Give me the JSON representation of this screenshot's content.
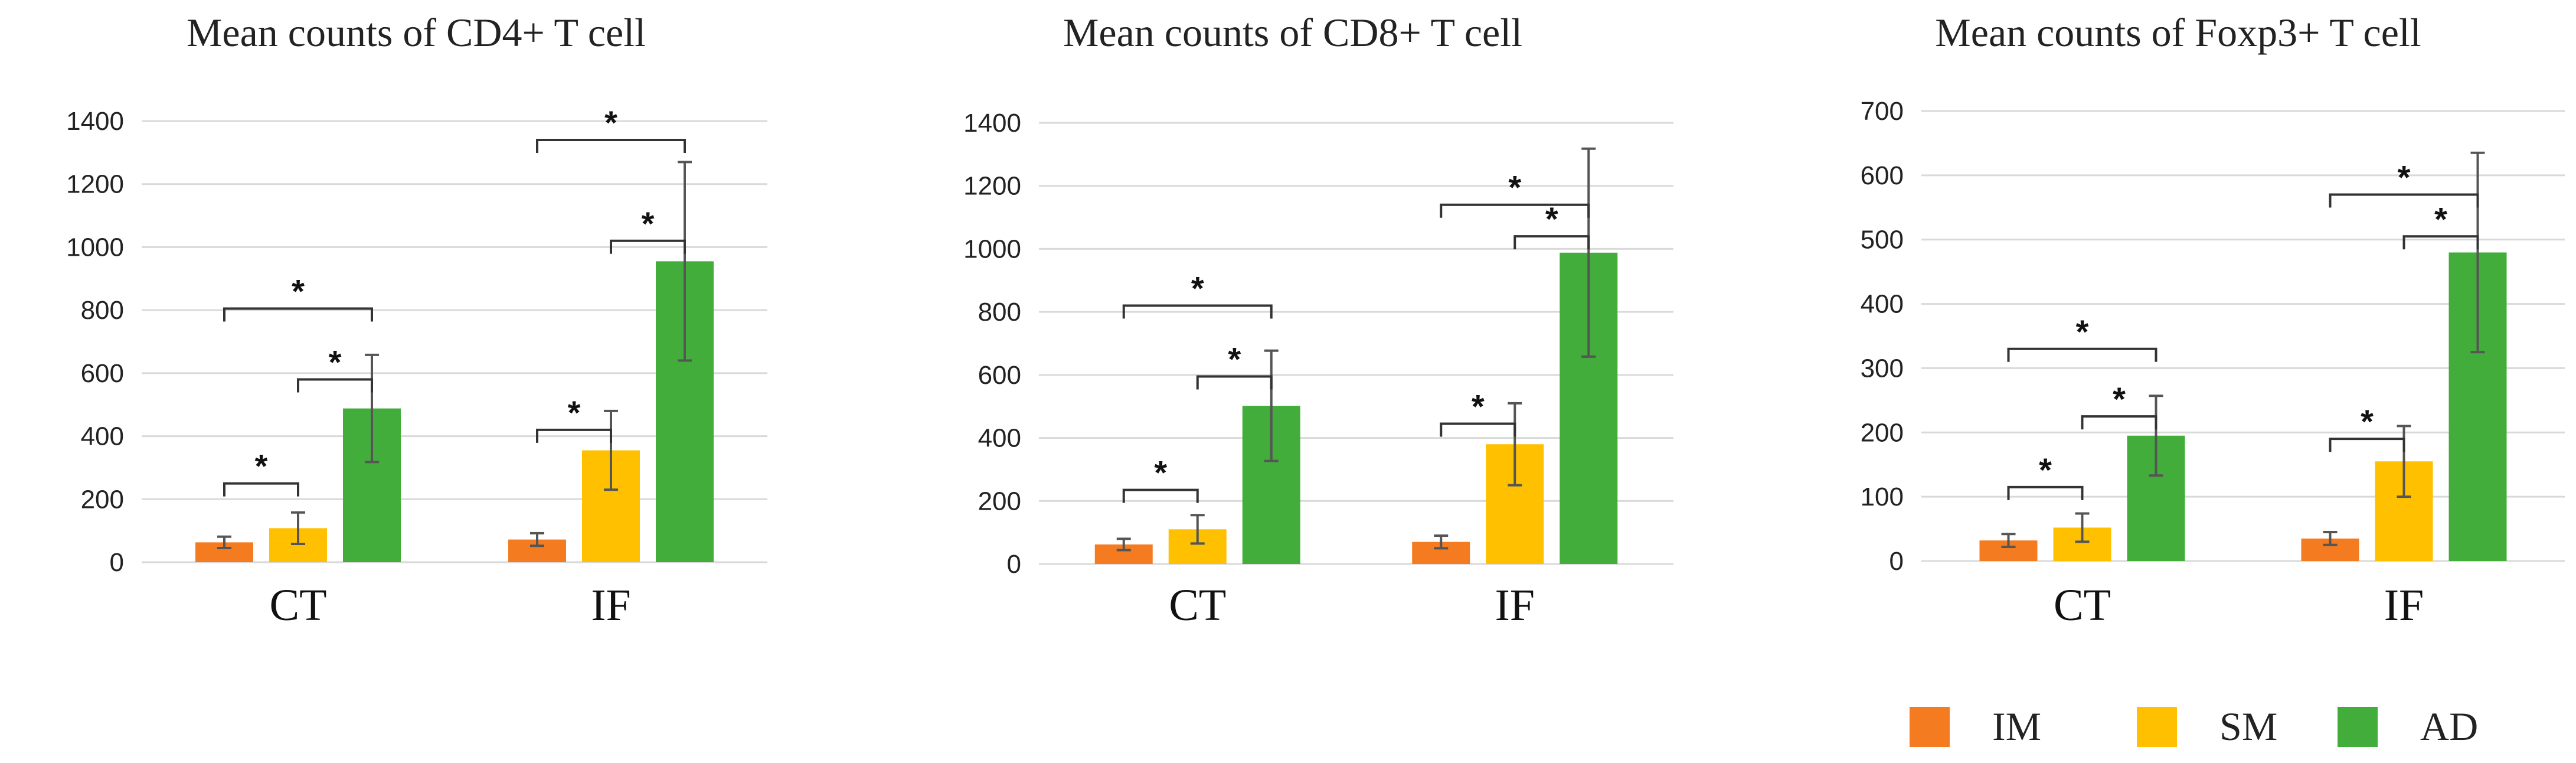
{
  "colors": {
    "IM": "#f47b20",
    "SM": "#ffc000",
    "AD": "#43ad3c"
  },
  "legend": [
    {
      "name": "IM",
      "color": "#f47b20"
    },
    {
      "name": "SM",
      "color": "#ffc000"
    },
    {
      "name": "AD",
      "color": "#43ad3c"
    }
  ],
  "chart_data": [
    {
      "type": "bar",
      "title": "Mean counts of CD4+ T cell",
      "categories": [
        "CT",
        "IF"
      ],
      "ylim": [
        0,
        1400
      ],
      "yticks": [
        0,
        200,
        400,
        600,
        800,
        1000,
        1200,
        1400
      ],
      "grid": true,
      "legend_position": "bottom-right",
      "series": [
        {
          "name": "IM",
          "values": [
            63,
            72
          ],
          "error": [
            18,
            20
          ]
        },
        {
          "name": "SM",
          "values": [
            108,
            355
          ],
          "error": [
            50,
            125
          ]
        },
        {
          "name": "AD",
          "values": [
            488,
            955
          ],
          "error": [
            170,
            315
          ]
        }
      ],
      "significance": [
        {
          "category": "CT",
          "from": "IM",
          "to": "SM",
          "label": "*",
          "y": 250
        },
        {
          "category": "CT",
          "from": "SM",
          "to": "AD",
          "label": "*",
          "y": 580
        },
        {
          "category": "CT",
          "from": "IM",
          "to": "AD",
          "label": "*",
          "y": 805
        },
        {
          "category": "IF",
          "from": "IM",
          "to": "SM",
          "label": "*",
          "y": 420
        },
        {
          "category": "IF",
          "from": "SM",
          "to": "AD",
          "label": "*",
          "y": 1020
        },
        {
          "category": "IF",
          "from": "IM",
          "to": "AD",
          "label": "*",
          "y": 1340
        }
      ]
    },
    {
      "type": "bar",
      "title": "Mean counts of CD8+ T cell",
      "categories": [
        "CT",
        "IF"
      ],
      "ylim": [
        0,
        1400
      ],
      "yticks": [
        0,
        200,
        400,
        600,
        800,
        1000,
        1200,
        1400
      ],
      "grid": true,
      "series": [
        {
          "name": "IM",
          "values": [
            62,
            70
          ],
          "error": [
            18,
            20
          ]
        },
        {
          "name": "SM",
          "values": [
            110,
            380
          ],
          "error": [
            45,
            130
          ]
        },
        {
          "name": "AD",
          "values": [
            502,
            988
          ],
          "error": [
            175,
            330
          ]
        }
      ],
      "significance": [
        {
          "category": "CT",
          "from": "IM",
          "to": "SM",
          "label": "*",
          "y": 235
        },
        {
          "category": "CT",
          "from": "SM",
          "to": "AD",
          "label": "*",
          "y": 595
        },
        {
          "category": "CT",
          "from": "IM",
          "to": "AD",
          "label": "*",
          "y": 820
        },
        {
          "category": "IF",
          "from": "IM",
          "to": "SM",
          "label": "*",
          "y": 445
        },
        {
          "category": "IF",
          "from": "SM",
          "to": "AD",
          "label": "*",
          "y": 1040
        },
        {
          "category": "IF",
          "from": "IM",
          "to": "AD",
          "label": "*",
          "y": 1140
        }
      ]
    },
    {
      "type": "bar",
      "title": "Mean counts of Foxp3+ T cell",
      "categories": [
        "CT",
        "IF"
      ],
      "ylim": [
        0,
        700
      ],
      "yticks": [
        0,
        100,
        200,
        300,
        400,
        500,
        600,
        700
      ],
      "grid": true,
      "series": [
        {
          "name": "IM",
          "values": [
            32,
            35
          ],
          "error": [
            10,
            10
          ]
        },
        {
          "name": "SM",
          "values": [
            52,
            155
          ],
          "error": [
            22,
            55
          ]
        },
        {
          "name": "AD",
          "values": [
            195,
            480
          ],
          "error": [
            62,
            155
          ]
        }
      ],
      "significance": [
        {
          "category": "CT",
          "from": "IM",
          "to": "SM",
          "label": "*",
          "y": 115
        },
        {
          "category": "CT",
          "from": "SM",
          "to": "AD",
          "label": "*",
          "y": 225
        },
        {
          "category": "CT",
          "from": "IM",
          "to": "AD",
          "label": "*",
          "y": 330
        },
        {
          "category": "IF",
          "from": "IM",
          "to": "SM",
          "label": "*",
          "y": 190
        },
        {
          "category": "IF",
          "from": "SM",
          "to": "AD",
          "label": "*",
          "y": 505
        },
        {
          "category": "IF",
          "from": "IM",
          "to": "AD",
          "label": "*",
          "y": 570
        }
      ]
    }
  ]
}
